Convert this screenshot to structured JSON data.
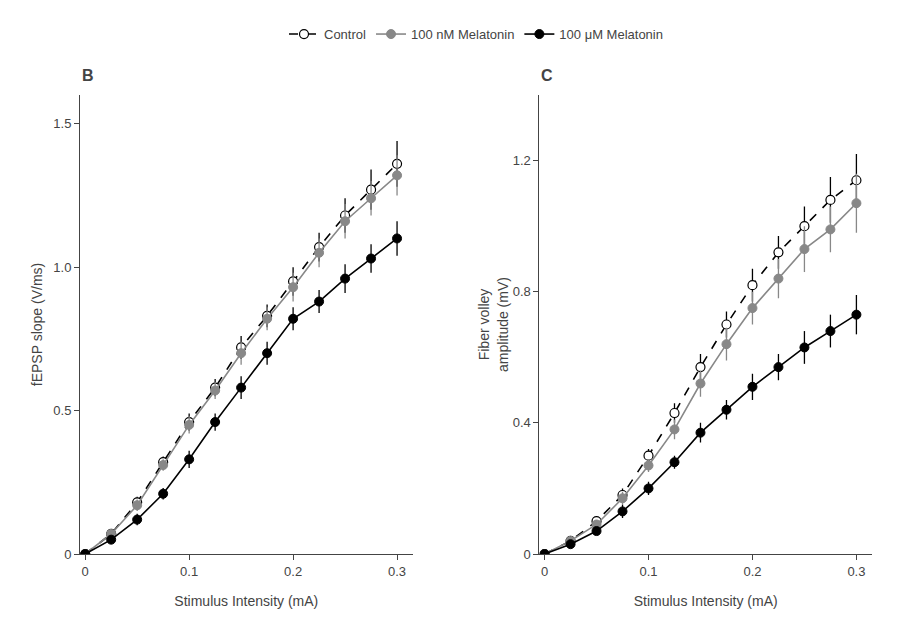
{
  "chart_data": [
    {
      "type": "line",
      "title": "B",
      "legend": "top",
      "grid": false,
      "xlabel": "Stimulus Intensity (mA)",
      "ylabel": "fEPSP slope (V/ms)",
      "x": [
        0.0,
        0.025,
        0.05,
        0.075,
        0.1,
        0.125,
        0.15,
        0.175,
        0.2,
        0.225,
        0.25,
        0.275,
        0.3
      ],
      "xlim": [
        -0.005,
        0.315
      ],
      "xticks": [
        0,
        0.1,
        0.2,
        0.3
      ],
      "ylim": [
        0,
        1.6
      ],
      "yticks": [
        0,
        0.5,
        {
          "value": 1.0,
          "label": "1.0"
        },
        1.5
      ],
      "series": [
        {
          "name": "Control",
          "color": "#000000",
          "marker": "open_circle",
          "line_style": "dashed",
          "values": [
            0.0,
            0.07,
            0.18,
            0.32,
            0.46,
            0.58,
            0.72,
            0.83,
            0.95,
            1.07,
            1.18,
            1.27,
            1.36
          ],
          "errors": [
            0.0,
            0.01,
            0.02,
            0.02,
            0.03,
            0.03,
            0.04,
            0.04,
            0.05,
            0.05,
            0.06,
            0.07,
            0.08
          ]
        },
        {
          "name": "100 nM Melatonin",
          "color": "#888888",
          "marker": "circle",
          "line_style": "solid",
          "values": [
            0.0,
            0.07,
            0.17,
            0.31,
            0.45,
            0.57,
            0.7,
            0.82,
            0.93,
            1.05,
            1.16,
            1.24,
            1.32
          ],
          "errors": [
            0.0,
            0.01,
            0.02,
            0.02,
            0.03,
            0.03,
            0.04,
            0.04,
            0.05,
            0.05,
            0.06,
            0.06,
            0.07
          ]
        },
        {
          "name": "100 μM Melatonin",
          "color": "#000000",
          "marker": "circle",
          "line_style": "solid",
          "values": [
            0.0,
            0.05,
            0.12,
            0.21,
            0.33,
            0.46,
            0.58,
            0.7,
            0.82,
            0.88,
            0.96,
            1.03,
            1.1
          ],
          "errors": [
            0.0,
            0.01,
            0.02,
            0.02,
            0.03,
            0.03,
            0.04,
            0.04,
            0.04,
            0.04,
            0.05,
            0.05,
            0.06
          ]
        }
      ]
    },
    {
      "type": "line",
      "title": "C",
      "grid": false,
      "xlabel": "Stimulus Intensity (mA)",
      "ylabel": "Fiber volley\namplitude (mV)",
      "x": [
        0.0,
        0.025,
        0.05,
        0.075,
        0.1,
        0.125,
        0.15,
        0.175,
        0.2,
        0.225,
        0.25,
        0.275,
        0.3
      ],
      "xlim": [
        -0.005,
        0.315
      ],
      "xticks": [
        0,
        0.1,
        0.2,
        0.3
      ],
      "ylim": [
        0,
        1.4
      ],
      "yticks": [
        0,
        0.4,
        0.8,
        1.2
      ],
      "series": [
        {
          "name": "Control",
          "color": "#000000",
          "marker": "open_circle",
          "line_style": "dashed",
          "values": [
            0.0,
            0.04,
            0.1,
            0.18,
            0.3,
            0.43,
            0.57,
            0.7,
            0.82,
            0.92,
            1.0,
            1.08,
            1.14
          ],
          "errors": [
            0.0,
            0.01,
            0.01,
            0.02,
            0.02,
            0.03,
            0.04,
            0.04,
            0.05,
            0.05,
            0.06,
            0.07,
            0.08
          ]
        },
        {
          "name": "100 nM Melatonin",
          "color": "#888888",
          "marker": "circle",
          "line_style": "solid",
          "values": [
            0.0,
            0.04,
            0.09,
            0.17,
            0.27,
            0.38,
            0.52,
            0.64,
            0.75,
            0.84,
            0.93,
            0.99,
            1.07
          ],
          "errors": [
            0.0,
            0.01,
            0.01,
            0.02,
            0.02,
            0.03,
            0.04,
            0.05,
            0.05,
            0.06,
            0.07,
            0.07,
            0.09
          ]
        },
        {
          "name": "100 μM Melatonin",
          "color": "#000000",
          "marker": "circle",
          "line_style": "solid",
          "values": [
            0.0,
            0.03,
            0.07,
            0.13,
            0.2,
            0.28,
            0.37,
            0.44,
            0.51,
            0.57,
            0.63,
            0.68,
            0.73
          ],
          "errors": [
            0.0,
            0.01,
            0.01,
            0.02,
            0.02,
            0.02,
            0.03,
            0.03,
            0.04,
            0.04,
            0.05,
            0.05,
            0.06
          ]
        }
      ]
    }
  ]
}
